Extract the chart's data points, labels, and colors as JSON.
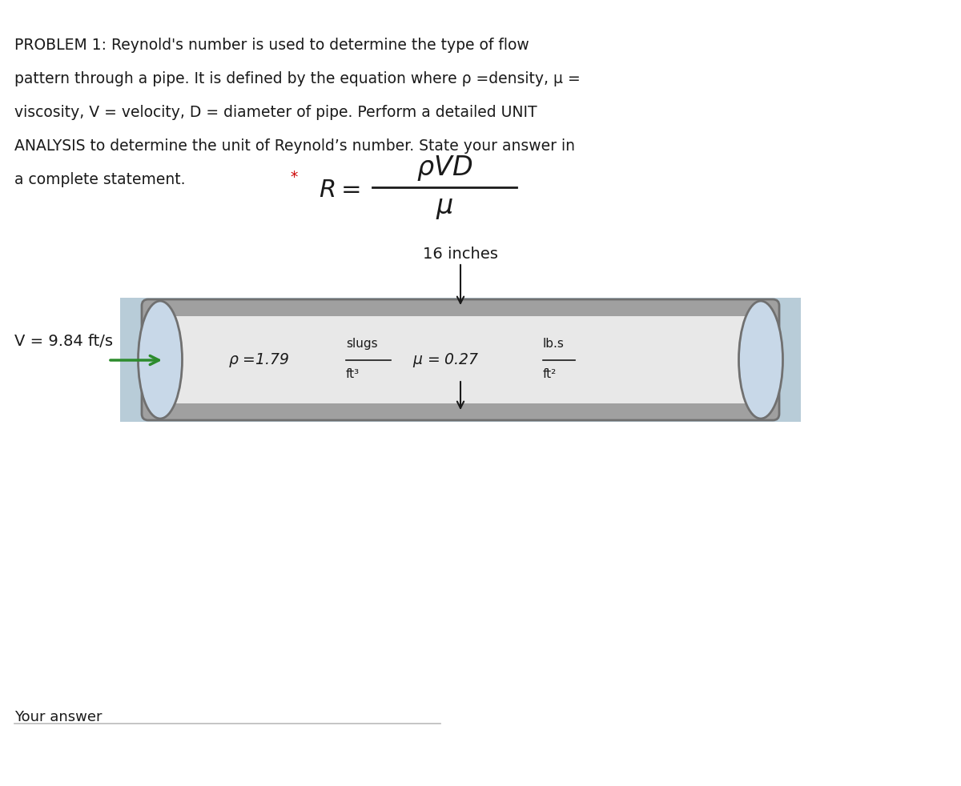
{
  "background_color": "#ffffff",
  "problem_text_lines": [
    "PROBLEM 1: Reynold's number is used to determine the type of flow",
    "pattern through a pipe. It is defined by the equation where ρ =density, μ =",
    "viscosity, V = velocity, D = diameter of pipe. Perform a detailed UNIT",
    "ANALYSIS to determine the unit of Reynold’s number. State your answer in",
    "a complete statement."
  ],
  "asterisk": "*",
  "formula_R": "R =",
  "formula_numerator": "ρVD",
  "formula_denominator": "μ",
  "pipe_label_top": "16 inches",
  "velocity_label": "V = 9.84 ft/s",
  "density_label": "ρ =1.79",
  "density_units_top": "slugs",
  "density_units_bot": "ft³",
  "viscosity_label": "μ = 0.27",
  "viscosity_units_top": "lb.s",
  "viscosity_units_bot": "ft²",
  "your_answer_label": "Your answer",
  "pipe_color": "#a0a0a0",
  "pipe_edge_color": "#707070",
  "pipe_inner_color": "#c8d8e8",
  "pipe_bg_color": "#b8ccd8",
  "arrow_color": "#2d8c2d",
  "text_color": "#1a1a1a",
  "asterisk_color": "#cc0000"
}
